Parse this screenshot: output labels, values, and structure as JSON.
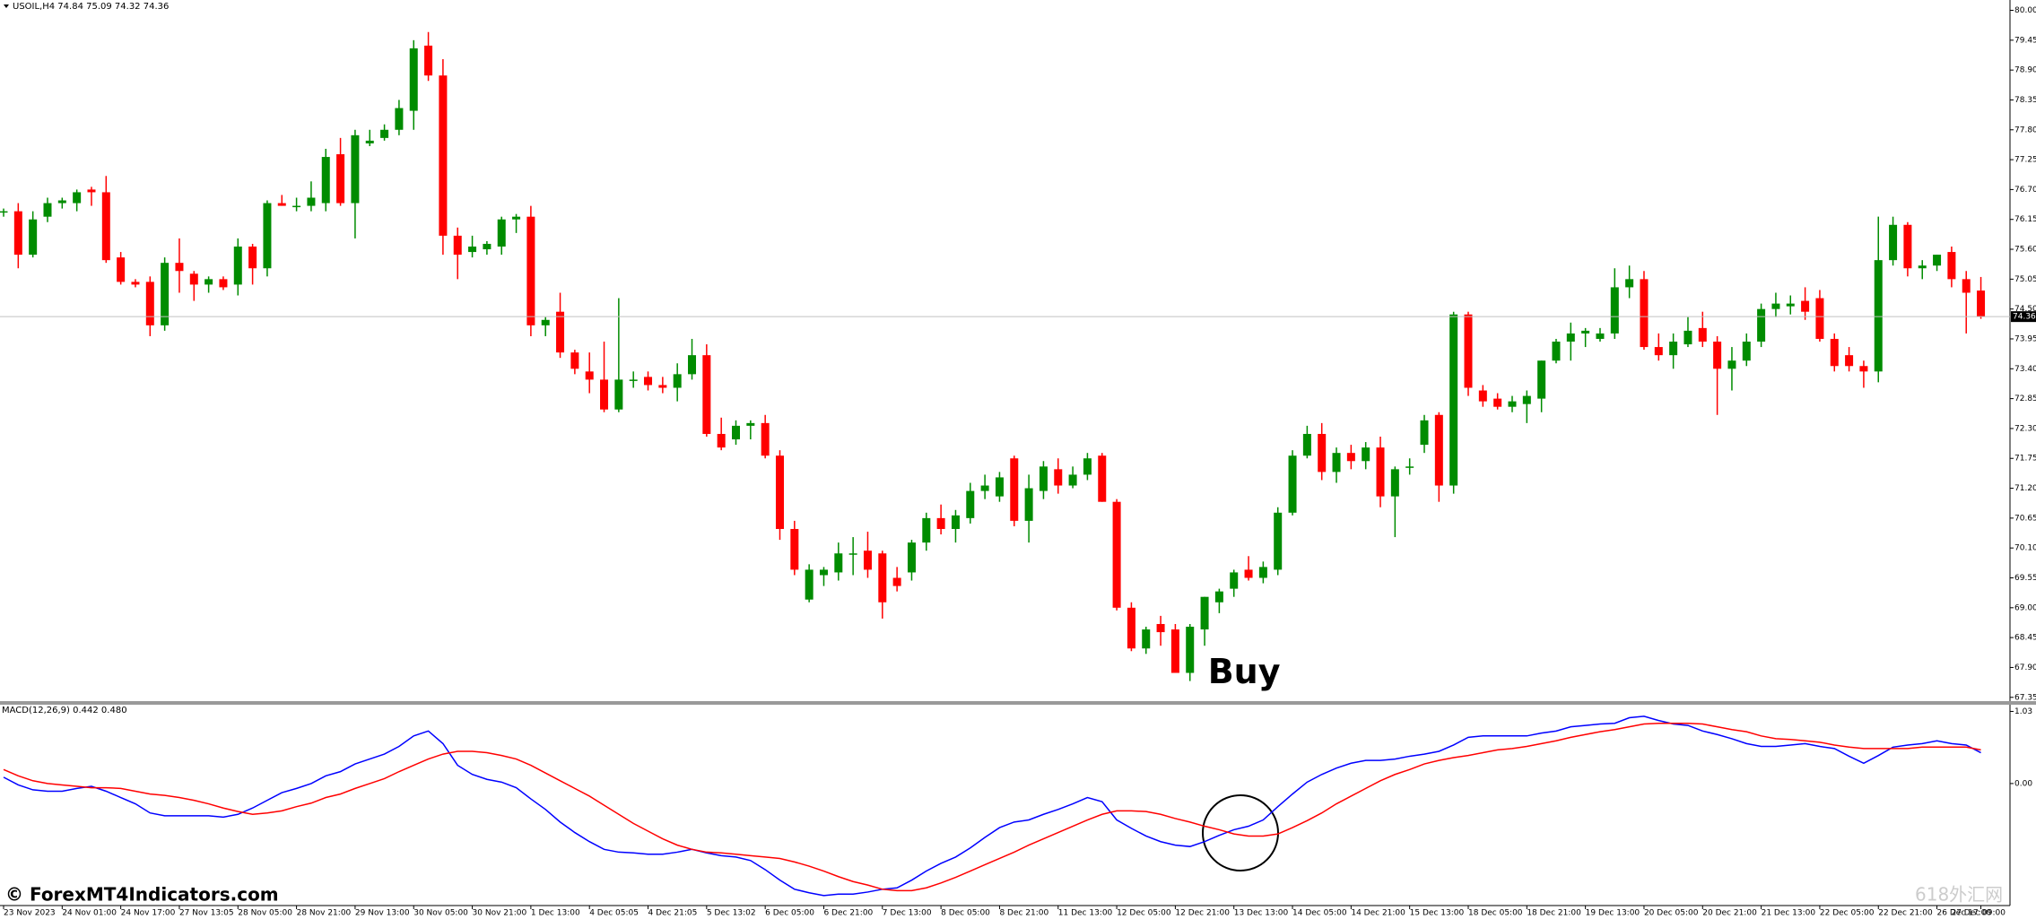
{
  "chart_data": [
    {
      "type": "candlestick",
      "title": "USOIL,H4  74.84 75.09 74.32 74.36",
      "categories": [
        "23 Nov 2023",
        null,
        null,
        null,
        "24 Nov 01:00",
        null,
        null,
        null,
        "24 Nov 17:00",
        null,
        null,
        null,
        "27 Nov 13:05",
        null,
        null,
        null,
        "28 Nov 05:00",
        null,
        null,
        null,
        "28 Nov 21:00",
        null,
        null,
        null,
        "29 Nov 13:00",
        null,
        null,
        null,
        "30 Nov 05:00",
        null,
        null,
        null,
        "30 Nov 21:00",
        null,
        null,
        null,
        "1 Dec 13:00",
        null,
        null,
        null,
        "4 Dec 05:05",
        null,
        null,
        null,
        "4 Dec 21:05",
        null,
        null,
        null,
        "5 Dec 13:02",
        null,
        null,
        null,
        "6 Dec 05:00",
        null,
        null,
        null,
        "6 Dec 21:00",
        null,
        null,
        null,
        "7 Dec 13:00",
        null,
        null,
        null,
        "8 Dec 05:00",
        null,
        null,
        null,
        "8 Dec 21:00",
        null,
        null,
        null,
        "11 Dec 13:00",
        null,
        null,
        null,
        "12 Dec 05:00",
        null,
        null,
        null,
        "12 Dec 21:00",
        null,
        null,
        null,
        "13 Dec 13:00",
        null,
        null,
        null,
        "14 Dec 05:00",
        null,
        null,
        null,
        "14 Dec 21:00",
        null,
        null,
        null,
        "15 Dec 13:00",
        null,
        null,
        null,
        "18 Dec 05:00",
        null,
        null,
        null,
        "18 Dec 21:00",
        null,
        null,
        null,
        "19 Dec 13:00",
        null,
        null,
        null,
        "20 Dec 05:00",
        null,
        null,
        null,
        "20 Dec 21:00",
        null,
        null,
        null,
        "21 Dec 13:00",
        null,
        null,
        null,
        "22 Dec 05:00",
        null,
        null,
        null,
        "22 Dec 21:00",
        null,
        null,
        null,
        "26 Dec 17:00",
        null,
        null,
        "27 Dec 09:00"
      ],
      "open": [
        76.3,
        76.3,
        75.5,
        76.2,
        76.45,
        76.45,
        76.7,
        76.65,
        75.45,
        75.0,
        75.0,
        74.2,
        75.35,
        75.15,
        74.95,
        75.05,
        74.95,
        75.65,
        75.25,
        76.45,
        76.4,
        76.4,
        76.45,
        77.35,
        76.45,
        77.55,
        77.65,
        77.8,
        78.15,
        79.35,
        78.8,
        75.85,
        75.55,
        75.6,
        75.65,
        76.15,
        76.2,
        74.2,
        74.45,
        73.7,
        73.35,
        73.2,
        72.65,
        73.2,
        73.25,
        73.1,
        73.05,
        73.3,
        73.65,
        72.2,
        72.1,
        72.35,
        72.4,
        71.8,
        70.45,
        69.15,
        69.6,
        69.65,
        70.0,
        70.05,
        70.0,
        69.55,
        69.65,
        70.2,
        70.65,
        70.45,
        70.65,
        71.15,
        71.05,
        71.75,
        70.6,
        71.15,
        71.55,
        71.25,
        71.45,
        71.8,
        70.95,
        69.0,
        68.25,
        68.7,
        68.6,
        67.8,
        68.6,
        69.1,
        69.35,
        69.7,
        69.55,
        69.7,
        70.75,
        71.8,
        72.2,
        71.5,
        71.85,
        71.7,
        71.95,
        71.05,
        71.6,
        72.0,
        72.55,
        71.25,
        74.4,
        73.0,
        72.85,
        72.7,
        72.75,
        72.85,
        73.55,
        73.9,
        74.05,
        73.95,
        74.05,
        74.9,
        75.05,
        73.8,
        73.65,
        73.85,
        74.15,
        73.9,
        73.4,
        73.55,
        73.9,
        74.5,
        74.55,
        74.65,
        74.7,
        73.95,
        73.65,
        73.45,
        73.35,
        75.4,
        76.05,
        75.25,
        75.3,
        75.55,
        75.05,
        74.84
      ],
      "high": [
        76.35,
        76.45,
        76.3,
        76.55,
        76.55,
        76.7,
        76.75,
        76.95,
        75.55,
        75.05,
        75.1,
        75.45,
        75.8,
        75.2,
        75.1,
        75.1,
        75.8,
        75.7,
        76.5,
        76.6,
        76.55,
        76.85,
        77.45,
        77.65,
        77.8,
        77.8,
        77.9,
        78.35,
        79.45,
        79.6,
        79.1,
        76.0,
        75.85,
        75.75,
        76.2,
        76.25,
        76.4,
        74.35,
        74.8,
        73.75,
        73.7,
        73.9,
        74.7,
        73.35,
        73.35,
        73.25,
        73.5,
        73.95,
        73.85,
        72.5,
        72.45,
        72.45,
        72.55,
        71.9,
        70.6,
        69.8,
        69.75,
        70.2,
        70.3,
        70.4,
        70.05,
        69.75,
        70.25,
        70.75,
        70.9,
        70.8,
        71.3,
        71.45,
        71.5,
        71.8,
        71.45,
        71.7,
        71.75,
        71.6,
        71.85,
        71.85,
        71.0,
        69.1,
        68.65,
        68.85,
        68.7,
        68.7,
        69.2,
        69.35,
        69.7,
        69.95,
        69.85,
        70.85,
        71.9,
        72.35,
        72.4,
        71.95,
        72.0,
        72.05,
        72.15,
        71.6,
        71.75,
        72.55,
        72.6,
        74.45,
        74.45,
        73.1,
        72.95,
        72.9,
        73.0,
        73.55,
        73.95,
        74.25,
        74.15,
        74.15,
        75.25,
        75.3,
        75.2,
        74.05,
        74.05,
        74.35,
        74.45,
        74.0,
        73.8,
        74.05,
        74.6,
        74.8,
        74.75,
        74.9,
        74.85,
        74.05,
        73.8,
        73.55,
        76.2,
        76.2,
        76.1,
        75.4,
        75.5,
        75.65,
        75.2,
        75.09
      ],
      "low": [
        76.2,
        75.25,
        75.45,
        76.1,
        76.35,
        76.3,
        76.4,
        75.35,
        74.95,
        74.9,
        74.0,
        74.1,
        74.8,
        74.65,
        74.8,
        74.85,
        74.75,
        74.95,
        75.1,
        76.4,
        76.3,
        76.3,
        76.3,
        76.4,
        75.8,
        77.5,
        77.6,
        77.7,
        77.8,
        78.7,
        75.5,
        75.05,
        75.45,
        75.5,
        75.5,
        75.9,
        74.0,
        74.0,
        73.6,
        73.3,
        72.95,
        72.6,
        72.6,
        73.05,
        73.0,
        72.95,
        72.8,
        73.2,
        72.15,
        71.9,
        72.0,
        72.1,
        71.75,
        70.25,
        69.6,
        69.1,
        69.4,
        69.5,
        69.6,
        69.55,
        68.8,
        69.3,
        69.5,
        70.05,
        70.35,
        70.2,
        70.55,
        71.0,
        70.95,
        70.5,
        70.2,
        71.0,
        71.1,
        71.2,
        71.35,
        70.95,
        68.95,
        68.2,
        68.15,
        68.3,
        67.8,
        67.65,
        68.3,
        68.9,
        69.2,
        69.5,
        69.45,
        69.6,
        70.7,
        71.75,
        71.35,
        71.3,
        71.55,
        71.55,
        70.85,
        70.3,
        71.45,
        71.85,
        70.95,
        71.1,
        72.9,
        72.7,
        72.65,
        72.6,
        72.4,
        72.6,
        73.5,
        73.55,
        73.8,
        73.9,
        73.95,
        74.7,
        73.75,
        73.55,
        73.4,
        73.8,
        73.8,
        72.55,
        73.0,
        73.45,
        73.8,
        74.35,
        74.4,
        74.3,
        73.9,
        73.35,
        73.35,
        73.05,
        73.15,
        75.3,
        75.1,
        75.05,
        75.2,
        74.9,
        74.05,
        74.32
      ],
      "close": [
        76.3,
        75.5,
        76.15,
        76.45,
        76.5,
        76.65,
        76.65,
        75.4,
        75.0,
        74.95,
        74.2,
        75.35,
        75.2,
        74.95,
        75.05,
        74.9,
        75.65,
        75.25,
        76.45,
        76.4,
        76.4,
        76.55,
        77.3,
        76.45,
        77.7,
        77.6,
        77.8,
        78.2,
        79.3,
        78.8,
        75.85,
        75.5,
        75.65,
        75.7,
        76.15,
        76.2,
        74.2,
        74.3,
        73.7,
        73.4,
        73.2,
        72.65,
        73.2,
        73.2,
        73.1,
        73.05,
        73.3,
        73.65,
        72.2,
        71.95,
        72.35,
        72.4,
        71.8,
        70.45,
        69.7,
        69.7,
        69.7,
        70.0,
        70.0,
        69.7,
        69.1,
        69.4,
        70.2,
        70.65,
        70.45,
        70.7,
        71.15,
        71.25,
        71.4,
        70.6,
        71.2,
        71.6,
        71.25,
        71.45,
        71.75,
        70.95,
        69.0,
        68.25,
        68.6,
        68.55,
        67.8,
        68.65,
        69.2,
        69.3,
        69.65,
        69.55,
        69.75,
        70.75,
        71.8,
        72.2,
        71.5,
        71.85,
        71.7,
        71.95,
        71.05,
        71.55,
        71.6,
        72.45,
        71.25,
        74.4,
        73.05,
        72.8,
        72.7,
        72.8,
        72.9,
        73.55,
        73.9,
        74.05,
        74.1,
        74.05,
        74.9,
        75.05,
        73.8,
        73.65,
        73.9,
        74.1,
        73.9,
        73.4,
        73.55,
        73.9,
        74.5,
        74.6,
        74.6,
        74.45,
        73.95,
        73.45,
        73.45,
        73.35,
        75.4,
        76.05,
        75.25,
        75.3,
        75.5,
        75.05,
        74.8,
        74.36
      ],
      "up_color": "#008c00",
      "down_color": "#ff0000",
      "last_price": 74.36,
      "annotation": "Buy",
      "ylim": [
        67.28,
        80.19
      ],
      "yticks": [
        {
          "value": 80,
          "label": "80.00"
        },
        79.45,
        {
          "value": 78.9,
          "label": "78.90"
        },
        78.35,
        {
          "value": 77.8,
          "label": "77.80"
        },
        77.25,
        {
          "value": 76.7,
          "label": "76.70"
        },
        76.15,
        {
          "value": 75.6,
          "label": "75.60"
        },
        75.05,
        {
          "value": 74.5,
          "label": "74.50"
        },
        73.95,
        {
          "value": 73.4,
          "label": "73.40"
        },
        72.85,
        {
          "value": 72.3,
          "label": "72.30"
        },
        71.75,
        {
          "value": 71.2,
          "label": "71.20"
        },
        70.65,
        {
          "value": 70.1,
          "label": "70.10"
        },
        69.55,
        {
          "value": 69,
          "label": "69.00"
        },
        68.45,
        {
          "value": 67.9,
          "label": "67.90"
        },
        67.35
      ],
      "grid": false
    },
    {
      "type": "line",
      "title": "MACD(12,26,9) 0.442 0.480",
      "series": [
        {
          "color": "#0000ff",
          "values": [
            0.09,
            -0.02,
            -0.09,
            -0.11,
            -0.11,
            -0.07,
            -0.04,
            -0.11,
            -0.2,
            -0.29,
            -0.42,
            -0.46,
            -0.46,
            -0.46,
            -0.46,
            -0.48,
            -0.44,
            -0.35,
            -0.24,
            -0.13,
            -0.07,
            0.0,
            0.11,
            0.17,
            0.28,
            0.35,
            0.42,
            0.53,
            0.68,
            0.75,
            0.57,
            0.26,
            0.13,
            0.06,
            0.02,
            -0.06,
            -0.22,
            -0.37,
            -0.55,
            -0.7,
            -0.83,
            -0.94,
            -0.98,
            -0.99,
            -1.01,
            -1.01,
            -0.98,
            -0.94,
            -0.99,
            -1.03,
            -1.05,
            -1.1,
            -1.23,
            -1.38,
            -1.51,
            -1.56,
            -1.6,
            -1.58,
            -1.58,
            -1.55,
            -1.51,
            -1.49,
            -1.38,
            -1.25,
            -1.14,
            -1.05,
            -0.92,
            -0.77,
            -0.63,
            -0.55,
            -0.52,
            -0.44,
            -0.37,
            -0.29,
            -0.2,
            -0.26,
            -0.52,
            -0.64,
            -0.75,
            -0.83,
            -0.88,
            -0.9,
            -0.83,
            -0.74,
            -0.66,
            -0.61,
            -0.52,
            -0.33,
            -0.15,
            0.02,
            0.13,
            0.22,
            0.29,
            0.33,
            0.33,
            0.35,
            0.39,
            0.42,
            0.46,
            0.55,
            0.66,
            0.68,
            0.68,
            0.68,
            0.68,
            0.72,
            0.75,
            0.81,
            0.83,
            0.85,
            0.86,
            0.94,
            0.96,
            0.9,
            0.85,
            0.83,
            0.75,
            0.7,
            0.64,
            0.57,
            0.53,
            0.53,
            0.55,
            0.57,
            0.53,
            0.5,
            0.39,
            0.29,
            0.4,
            0.52,
            0.55,
            0.57,
            0.61,
            0.57,
            0.55,
            0.44
          ]
        },
        {
          "color": "#ff0000",
          "values": [
            0.2,
            0.11,
            0.04,
            0.0,
            -0.02,
            -0.04,
            -0.06,
            -0.06,
            -0.07,
            -0.11,
            -0.15,
            -0.17,
            -0.2,
            -0.24,
            -0.29,
            -0.35,
            -0.4,
            -0.44,
            -0.42,
            -0.39,
            -0.33,
            -0.28,
            -0.2,
            -0.15,
            -0.07,
            0.0,
            0.07,
            0.17,
            0.26,
            0.35,
            0.42,
            0.46,
            0.46,
            0.44,
            0.4,
            0.35,
            0.26,
            0.15,
            0.04,
            -0.07,
            -0.18,
            -0.31,
            -0.44,
            -0.57,
            -0.68,
            -0.79,
            -0.88,
            -0.94,
            -0.98,
            -0.99,
            -1.01,
            -1.03,
            -1.05,
            -1.07,
            -1.12,
            -1.18,
            -1.25,
            -1.33,
            -1.4,
            -1.45,
            -1.51,
            -1.53,
            -1.53,
            -1.49,
            -1.42,
            -1.34,
            -1.25,
            -1.16,
            -1.07,
            -0.98,
            -0.88,
            -0.79,
            -0.7,
            -0.61,
            -0.52,
            -0.44,
            -0.39,
            -0.39,
            -0.4,
            -0.44,
            -0.5,
            -0.55,
            -0.61,
            -0.66,
            -0.72,
            -0.75,
            -0.75,
            -0.72,
            -0.63,
            -0.53,
            -0.42,
            -0.29,
            -0.18,
            -0.07,
            0.04,
            0.13,
            0.2,
            0.28,
            0.33,
            0.37,
            0.4,
            0.44,
            0.48,
            0.5,
            0.53,
            0.57,
            0.61,
            0.66,
            0.7,
            0.74,
            0.77,
            0.81,
            0.85,
            0.86,
            0.86,
            0.86,
            0.85,
            0.81,
            0.77,
            0.74,
            0.68,
            0.64,
            0.63,
            0.61,
            0.59,
            0.55,
            0.52,
            0.5,
            0.5,
            0.5,
            0.5,
            0.52,
            0.52,
            0.52,
            0.52,
            0.48
          ]
        }
      ],
      "ylim": [
        -1.73,
        1.1
      ],
      "yticks": [
        {
          "value": 1.03,
          "label": "1.03"
        },
        {
          "value": 0,
          "label": "0.00"
        }
      ]
    }
  ],
  "watermark": "© ForexMT4Indicators.com",
  "watermark2": "618外汇网"
}
